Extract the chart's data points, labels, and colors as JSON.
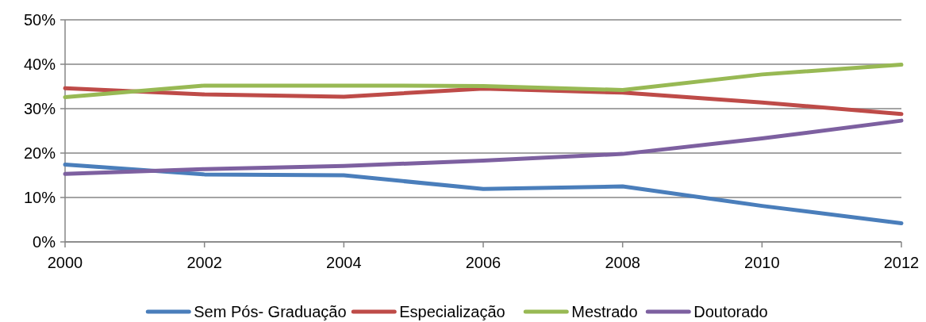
{
  "chart_data": {
    "type": "line",
    "x": [
      2000,
      2002,
      2004,
      2006,
      2008,
      2010,
      2012
    ],
    "xlim": [
      2000,
      2012
    ],
    "xticks": [
      2000,
      2002,
      2004,
      2006,
      2008,
      2010,
      2012
    ],
    "ylim": [
      0,
      50
    ],
    "yticks": [
      {
        "value": 0,
        "label": "0%"
      },
      {
        "value": 10,
        "label": "10%"
      },
      {
        "value": 20,
        "label": "20%"
      },
      {
        "value": 30,
        "label": "30%"
      },
      {
        "value": 40,
        "label": "40%"
      },
      {
        "value": 50,
        "label": "50%"
      }
    ],
    "grid": "y",
    "legend": "bottom",
    "marker": "none",
    "line_style": "solid",
    "series": [
      {
        "name": "Sem Pós- Graduação",
        "color": "#4a7ebb",
        "values": [
          17.4,
          15.2,
          15.0,
          11.9,
          12.5,
          8.1,
          4.2
        ]
      },
      {
        "name": "Especialização",
        "color": "#be4b48",
        "values": [
          34.6,
          33.2,
          32.7,
          34.5,
          33.6,
          31.4,
          28.8
        ]
      },
      {
        "name": "Mestrado",
        "color": "#98b954",
        "values": [
          32.6,
          35.2,
          35.2,
          35.1,
          34.2,
          37.7,
          39.9
        ]
      },
      {
        "name": "Doutorado",
        "color": "#7d60a0",
        "values": [
          15.3,
          16.4,
          17.1,
          18.3,
          19.8,
          23.3,
          27.3
        ]
      }
    ]
  }
}
